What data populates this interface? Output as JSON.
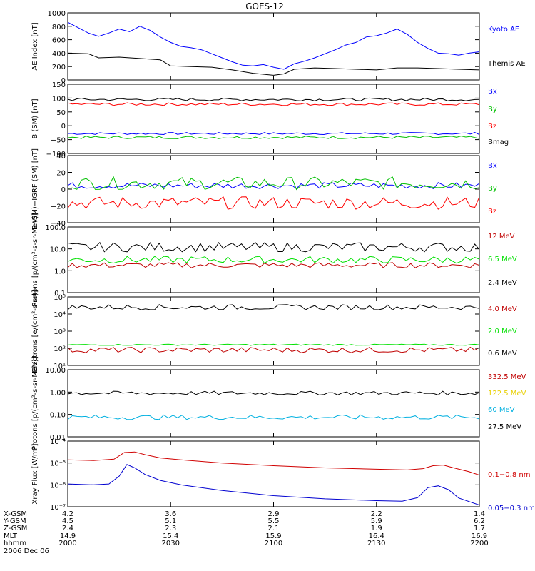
{
  "title": "GOES-12",
  "footer": {
    "rows": [
      {
        "label": "X-GSM",
        "values": [
          "4.2",
          "3.6",
          "2.9",
          "2.2",
          "1.4"
        ]
      },
      {
        "label": "Y-GSM",
        "values": [
          "4.5",
          "5.1",
          "5.5",
          "5.9",
          "6.2"
        ]
      },
      {
        "label": "Z-GSM",
        "values": [
          "2.4",
          "2.3",
          "2.1",
          "1.9",
          "1.7"
        ]
      },
      {
        "label": "MLT",
        "values": [
          "14.9",
          "15.4",
          "15.9",
          "16.4",
          "16.9"
        ]
      },
      {
        "label": "hhmm",
        "values": [
          "2000",
          "2030",
          "2100",
          "2130",
          "2200"
        ]
      }
    ],
    "date": "2006 Dec 06"
  },
  "chart_data": [
    {
      "type": "line",
      "ylabel": "AE Index [nT]",
      "ylim": [
        0,
        1000
      ],
      "yticks": [
        "0",
        "200",
        "400",
        "600",
        "800",
        "1000"
      ],
      "x_hhmm": [
        "2000",
        "2030",
        "2100",
        "2130",
        "2200"
      ],
      "series": [
        {
          "name": "Kyoto AE",
          "color": "#0000ff",
          "points": [
            [
              0,
              860
            ],
            [
              4,
              780
            ],
            [
              8,
              700
            ],
            [
              12,
              650
            ],
            [
              16,
              700
            ],
            [
              20,
              760
            ],
            [
              24,
              720
            ],
            [
              28,
              800
            ],
            [
              32,
              740
            ],
            [
              36,
              640
            ],
            [
              40,
              560
            ],
            [
              44,
              500
            ],
            [
              48,
              480
            ],
            [
              52,
              450
            ],
            [
              56,
              390
            ],
            [
              60,
              330
            ],
            [
              64,
              270
            ],
            [
              68,
              220
            ],
            [
              72,
              210
            ],
            [
              76,
              230
            ],
            [
              80,
              190
            ],
            [
              84,
              160
            ],
            [
              88,
              240
            ],
            [
              92,
              280
            ],
            [
              96,
              330
            ],
            [
              100,
              390
            ],
            [
              104,
              450
            ],
            [
              108,
              520
            ],
            [
              112,
              560
            ],
            [
              116,
              640
            ],
            [
              120,
              660
            ],
            [
              124,
              700
            ],
            [
              128,
              760
            ],
            [
              132,
              680
            ],
            [
              136,
              560
            ],
            [
              140,
              470
            ],
            [
              144,
              400
            ],
            [
              148,
              390
            ],
            [
              152,
              370
            ],
            [
              156,
              400
            ],
            [
              160,
              420
            ]
          ]
        },
        {
          "name": "Themis AE",
          "color": "#000000",
          "points": [
            [
              0,
              400
            ],
            [
              8,
              390
            ],
            [
              12,
              330
            ],
            [
              20,
              340
            ],
            [
              28,
              320
            ],
            [
              36,
              300
            ],
            [
              40,
              210
            ],
            [
              48,
              200
            ],
            [
              56,
              190
            ],
            [
              64,
              150
            ],
            [
              72,
              100
            ],
            [
              80,
              70
            ],
            [
              84,
              90
            ],
            [
              88,
              160
            ],
            [
              96,
              180
            ],
            [
              104,
              170
            ],
            [
              112,
              160
            ],
            [
              120,
              150
            ],
            [
              128,
              180
            ],
            [
              136,
              180
            ],
            [
              144,
              170
            ],
            [
              152,
              160
            ],
            [
              160,
              150
            ]
          ]
        }
      ]
    },
    {
      "type": "line",
      "ylabel": "B (SM) [nT]",
      "ylim": [
        -100,
        150
      ],
      "yticks": [
        "−100",
        "−50",
        "0",
        "50",
        "100",
        "150"
      ],
      "series": [
        {
          "name": "Bx",
          "color": "#0000ff",
          "base": -28,
          "amp": 4,
          "points": []
        },
        {
          "name": "By",
          "color": "#00c000",
          "base": -42,
          "amp": 5,
          "points": []
        },
        {
          "name": "Bz",
          "color": "#ff0000",
          "base": 78,
          "amp": 5,
          "points": []
        },
        {
          "name": "Bmag",
          "color": "#000000",
          "base": 95,
          "amp": 5,
          "points": []
        }
      ]
    },
    {
      "type": "line",
      "ylabel": "B (SM)−IGRF (SM) [nT]",
      "ylim": [
        -45,
        40
      ],
      "yticks": [
        "−40",
        "−20",
        "0",
        "20",
        "40"
      ],
      "series": [
        {
          "name": "Bx",
          "color": "#0000ff",
          "base": 2,
          "amp": 4,
          "points": []
        },
        {
          "name": "By",
          "color": "#00c000",
          "base": 5,
          "amp": 8,
          "points": []
        },
        {
          "name": "Bz",
          "color": "#ff0000",
          "base": -20,
          "amp": 8,
          "points": []
        }
      ]
    },
    {
      "type": "line",
      "ylabel": "Protons [p/(cm²-s-sr-MeV)]",
      "scale": "log",
      "ylim": [
        0.1,
        100
      ],
      "yticks": [
        "0.1",
        "1.0",
        "10.0",
        "100.0"
      ],
      "series": [
        {
          "name": "12 MeV",
          "color": "#c00000",
          "base": 1.8,
          "amp": 0.35,
          "points": []
        },
        {
          "name": "6.5 MeV",
          "color": "#00e000",
          "base": 3.2,
          "amp": 0.8,
          "points": []
        },
        {
          "name": "2.4 MeV",
          "color": "#000000",
          "base": 12,
          "amp": 4,
          "points": []
        }
      ]
    },
    {
      "type": "line",
      "ylabel": "Electrons [e/(cm²-s-sr)]",
      "scale": "log",
      "ylim": [
        10,
        100000
      ],
      "yticks": [
        "10¹",
        "10²",
        "10³",
        "10⁴",
        "10⁵"
      ],
      "series": [
        {
          "name": "4.0 MeV",
          "color": "#c00000",
          "base": 80,
          "amp": 20,
          "points": []
        },
        {
          "name": "2.0 MeV",
          "color": "#00e000",
          "base": 160,
          "amp": 10,
          "points": []
        },
        {
          "name": "0.6 MeV",
          "color": "#000000",
          "base": 25000,
          "amp": 6000,
          "points": []
        }
      ]
    },
    {
      "type": "line",
      "ylabel": "Protons [p/(cm²-s-sr-MeV)]",
      "scale": "log",
      "ylim": [
        0.01,
        10
      ],
      "yticks": [
        "0.01",
        "0.10",
        "1.00",
        "10.00"
      ],
      "series": [
        {
          "name": "332.5 MeV",
          "color": "#c00000",
          "points": []
        },
        {
          "name": "122.5 MeV",
          "color": "#e8d000",
          "points": []
        },
        {
          "name": "60 MeV",
          "color": "#00b0e0",
          "base": 0.075,
          "amp": 0.012,
          "points": []
        },
        {
          "name": "27.5 MeV",
          "color": "#000000",
          "base": 0.9,
          "amp": 0.12,
          "points": []
        }
      ]
    },
    {
      "type": "line",
      "ylabel": "Xray Flux [W/m²]",
      "scale": "log",
      "ylim": [
        1e-07,
        0.0001
      ],
      "yticks": [
        "10⁻⁷",
        "10⁻⁶",
        "10⁻⁵",
        "10⁻⁴"
      ],
      "series": [
        {
          "name": "0.1−0.8 nm",
          "color": "#d00000",
          "points": [
            [
              0,
              1.4e-05
            ],
            [
              10,
              1.3e-05
            ],
            [
              18,
              1.5e-05
            ],
            [
              22,
              3e-05
            ],
            [
              26,
              3.2e-05
            ],
            [
              30,
              2.4e-05
            ],
            [
              36,
              1.7e-05
            ],
            [
              44,
              1.4e-05
            ],
            [
              60,
              1e-05
            ],
            [
              80,
              7.5e-06
            ],
            [
              100,
              6e-06
            ],
            [
              120,
              5.2e-06
            ],
            [
              132,
              4.8e-06
            ],
            [
              138,
              5.5e-06
            ],
            [
              142,
              7.5e-06
            ],
            [
              146,
              8e-06
            ],
            [
              150,
              6e-06
            ],
            [
              156,
              4e-06
            ],
            [
              160,
              2.8e-06
            ]
          ]
        },
        {
          "name": "0.05−0.3 nm",
          "color": "#0000d0",
          "points": [
            [
              0,
              1.1e-06
            ],
            [
              10,
              1e-06
            ],
            [
              16,
              1.1e-06
            ],
            [
              20,
              2.5e-06
            ],
            [
              23,
              8.5e-06
            ],
            [
              26,
              6e-06
            ],
            [
              30,
              3e-06
            ],
            [
              36,
              1.6e-06
            ],
            [
              44,
              1e-06
            ],
            [
              60,
              5.5e-07
            ],
            [
              80,
              3.2e-07
            ],
            [
              100,
              2.3e-07
            ],
            [
              120,
              1.9e-07
            ],
            [
              130,
              1.8e-07
            ],
            [
              136,
              2.6e-07
            ],
            [
              140,
              7.5e-07
            ],
            [
              144,
              9e-07
            ],
            [
              148,
              6e-07
            ],
            [
              152,
              2.5e-07
            ],
            [
              160,
              1.2e-07
            ]
          ]
        }
      ]
    }
  ]
}
